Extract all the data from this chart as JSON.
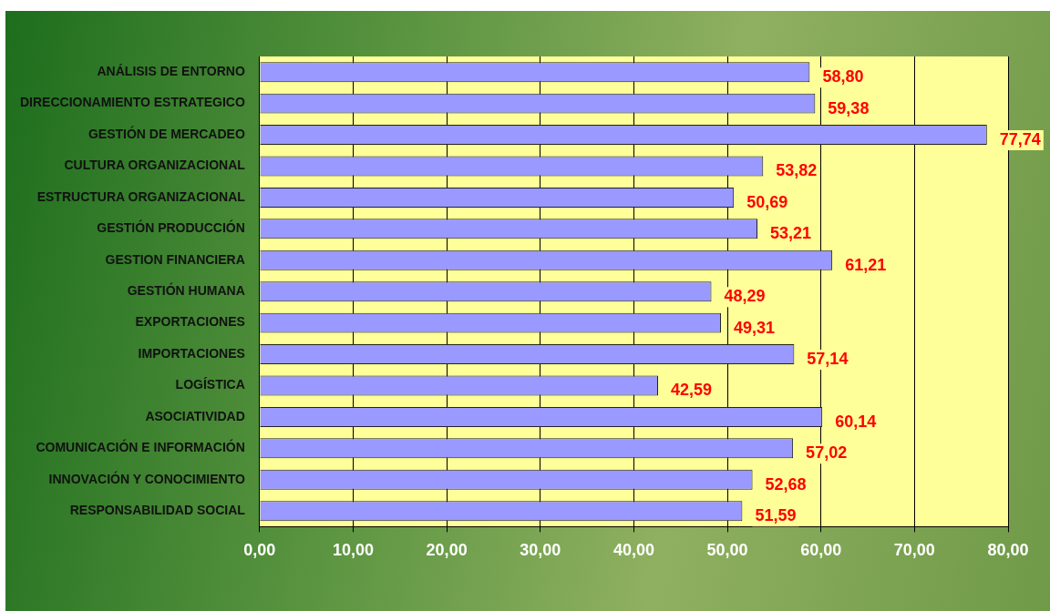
{
  "chart_data": {
    "type": "bar",
    "orientation": "horizontal",
    "categories": [
      "ANÁLISIS DE ENTORNO",
      "DIRECCIONAMIENTO ESTRATEGICO",
      "GESTIÓN DE MERCADEO",
      "CULTURA ORGANIZACIONAL",
      "ESTRUCTURA ORGANIZACIONAL",
      "GESTIÓN PRODUCCIÓN",
      "GESTION FINANCIERA",
      "GESTIÓN HUMANA",
      "EXPORTACIONES",
      "IMPORTACIONES",
      "LOGÍSTICA",
      "ASOCIATIVIDAD",
      "COMUNICACIÓN E INFORMACIÓN",
      "INNOVACIÓN Y CONOCIMIENTO",
      "RESPONSABILIDAD SOCIAL"
    ],
    "values": [
      58.8,
      59.38,
      77.74,
      53.82,
      50.69,
      53.21,
      61.21,
      48.29,
      49.31,
      57.14,
      42.59,
      60.14,
      57.02,
      52.68,
      51.59
    ],
    "value_labels": [
      "58,80",
      "59,38",
      "77,74",
      "53,82",
      "50,69",
      "53,21",
      "61,21",
      "48,29",
      "49,31",
      "57,14",
      "42,59",
      "60,14",
      "57,02",
      "52,68",
      "51,59"
    ],
    "color": "#9999ff",
    "xlim": [
      0,
      80
    ],
    "xticks": [
      {
        "value": 0,
        "label": "0,00"
      },
      {
        "value": 10,
        "label": "10,00"
      },
      {
        "value": 20,
        "label": "20,00"
      },
      {
        "value": 30,
        "label": "30,00"
      },
      {
        "value": 40,
        "label": "40,00"
      },
      {
        "value": 50,
        "label": "50,00"
      },
      {
        "value": 60,
        "label": "60,00"
      },
      {
        "value": 70,
        "label": "70,00"
      },
      {
        "value": 80,
        "label": "80,00"
      }
    ],
    "grid": "x",
    "legend": false
  }
}
